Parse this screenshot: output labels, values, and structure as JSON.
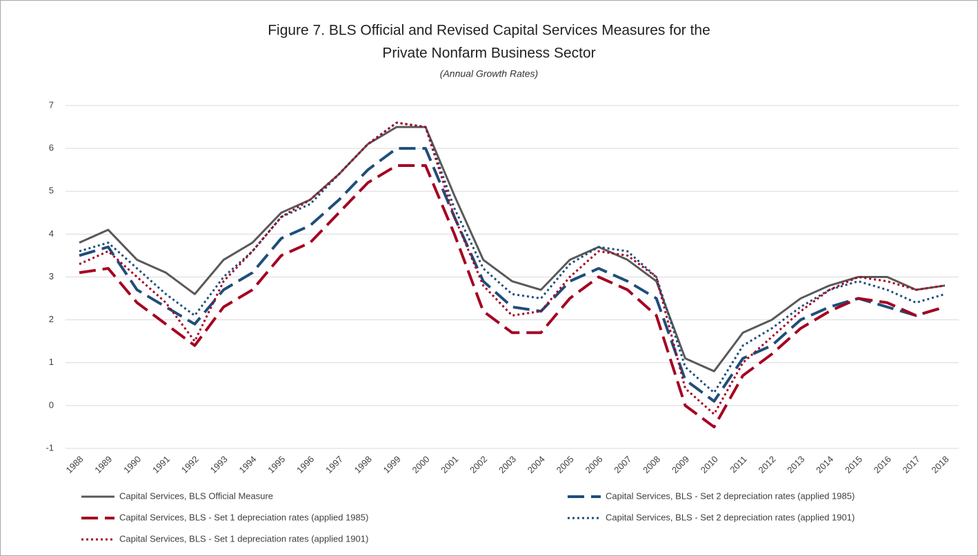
{
  "chart_data": {
    "type": "line",
    "title": [
      "Figure 7. BLS Official and Revised Capital Services Measures for the",
      "Private Nonfarm Business Sector"
    ],
    "subtitle": "(Annual Growth Rates)",
    "categories": [
      "1988",
      "1989",
      "1990",
      "1991",
      "1992",
      "1993",
      "1994",
      "1995",
      "1996",
      "1997",
      "1998",
      "1999",
      "2000",
      "2001",
      "2002",
      "2003",
      "2004",
      "2005",
      "2006",
      "2007",
      "2008",
      "2009",
      "2010",
      "2011",
      "2012",
      "2013",
      "2014",
      "2015",
      "2016",
      "2017",
      "2018"
    ],
    "ylim": [
      -1,
      7
    ],
    "yticks": [
      -1,
      0,
      1,
      2,
      3,
      4,
      5,
      6,
      7
    ],
    "grid": true,
    "legend": "bottom",
    "series": [
      {
        "name": "Capital Services, BLS Official Measure",
        "color": "#595959",
        "style": "solid",
        "values": [
          3.8,
          4.1,
          3.4,
          3.1,
          2.6,
          3.4,
          3.8,
          4.5,
          4.8,
          5.4,
          6.1,
          6.5,
          6.5,
          4.9,
          3.4,
          2.9,
          2.7,
          3.4,
          3.7,
          3.4,
          2.9,
          1.1,
          0.8,
          1.7,
          2.0,
          2.5,
          2.8,
          3.0,
          3.0,
          2.7,
          2.8
        ]
      },
      {
        "name": "Capital Services, BLS - Set 2 depreciation rates (applied 1985)",
        "color": "#1f4e79",
        "style": "dashed",
        "values": [
          3.5,
          3.7,
          2.7,
          2.3,
          1.9,
          2.7,
          3.1,
          3.9,
          4.2,
          4.8,
          5.5,
          6.0,
          6.0,
          4.4,
          2.9,
          2.3,
          2.2,
          2.9,
          3.2,
          2.9,
          2.5,
          0.6,
          0.1,
          1.1,
          1.4,
          2.0,
          2.3,
          2.5,
          2.3,
          2.1,
          2.3
        ]
      },
      {
        "name": "Capital Services, BLS - Set 1 depreciation rates (applied 1985)",
        "color": "#a50021",
        "style": "dashed",
        "values": [
          3.1,
          3.2,
          2.4,
          1.9,
          1.4,
          2.3,
          2.7,
          3.5,
          3.8,
          4.5,
          5.2,
          5.6,
          5.6,
          4.0,
          2.2,
          1.7,
          1.7,
          2.5,
          3.0,
          2.7,
          2.1,
          0.0,
          -0.5,
          0.7,
          1.2,
          1.8,
          2.2,
          2.5,
          2.4,
          2.1,
          2.3
        ]
      },
      {
        "name": "Capital Services, BLS - Set 2 depreciation rates (applied 1901)",
        "color": "#1f4e79",
        "style": "dotted",
        "values": [
          3.6,
          3.8,
          3.2,
          2.6,
          2.1,
          3.0,
          3.6,
          4.4,
          4.7,
          5.4,
          6.1,
          6.6,
          6.5,
          4.6,
          3.2,
          2.6,
          2.5,
          3.3,
          3.7,
          3.6,
          3.0,
          0.9,
          0.3,
          1.4,
          1.8,
          2.3,
          2.7,
          2.9,
          2.7,
          2.4,
          2.6
        ]
      },
      {
        "name": "Capital Services, BLS - Set 1 depreciation rates (applied 1901)",
        "color": "#a50021",
        "style": "dotted",
        "values": [
          3.3,
          3.6,
          3.0,
          2.4,
          1.5,
          2.9,
          3.6,
          4.4,
          4.8,
          5.4,
          6.1,
          6.6,
          6.5,
          4.4,
          2.8,
          2.1,
          2.2,
          3.0,
          3.6,
          3.5,
          3.0,
          0.4,
          -0.2,
          1.0,
          1.6,
          2.2,
          2.7,
          3.0,
          2.9,
          2.7,
          2.8
        ]
      }
    ]
  }
}
